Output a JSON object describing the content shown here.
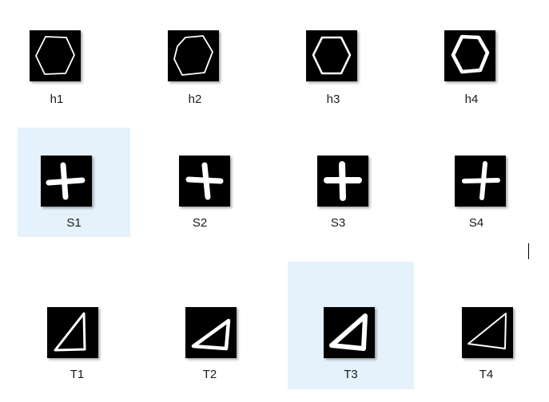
{
  "files": [
    {
      "name": "h1",
      "icon": "hexagon-thin-icon",
      "selected": false
    },
    {
      "name": "h2",
      "icon": "hexagon-thin-icon",
      "selected": false
    },
    {
      "name": "h3",
      "icon": "hexagon-icon",
      "selected": false
    },
    {
      "name": "h4",
      "icon": "hexagon-thick-icon",
      "selected": false
    },
    {
      "name": "S1",
      "icon": "cross-icon",
      "selected": true
    },
    {
      "name": "S2",
      "icon": "cross-icon",
      "selected": false
    },
    {
      "name": "S3",
      "icon": "cross-icon",
      "selected": false
    },
    {
      "name": "S4",
      "icon": "cross-icon",
      "selected": false
    },
    {
      "name": "T1",
      "icon": "triangle-icon",
      "selected": false
    },
    {
      "name": "T2",
      "icon": "triangle-icon",
      "selected": false
    },
    {
      "name": "T3",
      "icon": "triangle-icon",
      "selected": true
    },
    {
      "name": "T4",
      "icon": "triangle-thin-icon",
      "selected": false
    }
  ],
  "colors": {
    "selection": "#e5f1fb",
    "thumbnail_background": "#000000",
    "stroke": "#ffffff"
  }
}
